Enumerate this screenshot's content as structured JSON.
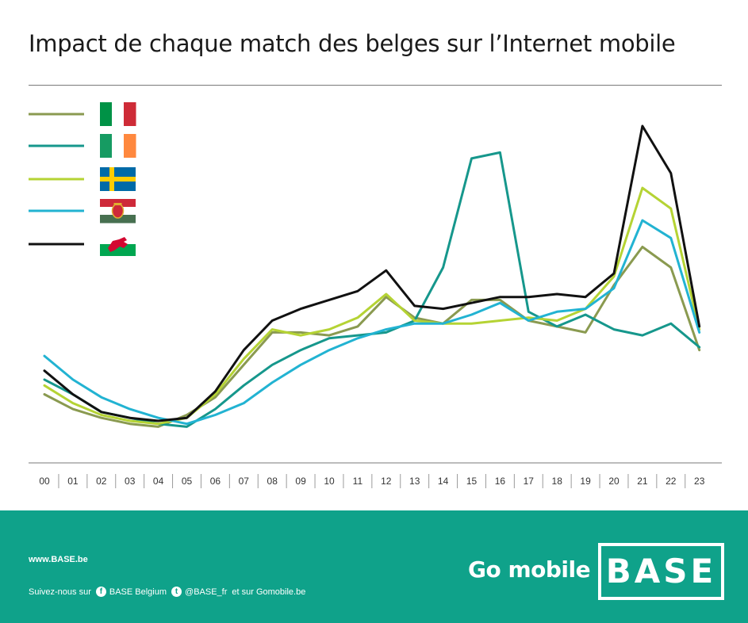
{
  "title": "Impact de chaque match des belges sur l’Internet mobile",
  "chart_data": {
    "type": "line",
    "x": [
      "00",
      "01",
      "02",
      "03",
      "04",
      "05",
      "06",
      "07",
      "08",
      "09",
      "10",
      "11",
      "12",
      "13",
      "14",
      "15",
      "16",
      "17",
      "18",
      "19",
      "20",
      "21",
      "22",
      "23"
    ],
    "legend_placement": "top-left",
    "grid": false,
    "y_axis_visible": false,
    "ylim": [
      0,
      100
    ],
    "series": [
      {
        "flag": "italy",
        "color": "#8a9a50",
        "values": [
          16,
          11,
          8,
          6,
          5,
          9,
          15,
          26,
          37,
          37,
          36,
          39,
          49,
          42,
          40,
          48,
          48,
          41,
          39,
          37,
          53,
          66,
          59,
          31
        ]
      },
      {
        "flag": "ireland",
        "color": "#16978c",
        "values": [
          21,
          16,
          10,
          8,
          6,
          5,
          11,
          19,
          26,
          31,
          35,
          36,
          37,
          41,
          59,
          96,
          98,
          44,
          39,
          43,
          38,
          36,
          40,
          32
        ]
      },
      {
        "flag": "sweden",
        "color": "#b5d334",
        "values": [
          19,
          13,
          9,
          7,
          6,
          8,
          16,
          28,
          38,
          36,
          38,
          42,
          50,
          41,
          40,
          40,
          41,
          42,
          41,
          45,
          56,
          86,
          79,
          38
        ]
      },
      {
        "flag": "hungary",
        "color": "#22b3d2",
        "values": [
          29,
          21,
          15,
          11,
          8,
          6,
          9,
          13,
          20,
          26,
          31,
          35,
          38,
          40,
          40,
          43,
          47,
          41,
          44,
          45,
          52,
          75,
          69,
          37
        ]
      },
      {
        "flag": "wales",
        "color": "#111111",
        "values": [
          24,
          16,
          10,
          8,
          7,
          8,
          17,
          31,
          41,
          45,
          48,
          51,
          58,
          46,
          45,
          47,
          49,
          49,
          50,
          49,
          57,
          107,
          91,
          39
        ]
      }
    ]
  },
  "footer": {
    "website": "www.BASE.be",
    "follow_prefix": "Suivez-nous sur",
    "facebook": "BASE Belgium",
    "twitter": "@BASE_fr",
    "also": "et sur Gomobile.be",
    "slogan": "Go mobile",
    "logo": "BASE",
    "facebook_icon": "facebook-icon",
    "twitter_icon": "twitter-icon",
    "footer_color": "#0fa28a"
  }
}
